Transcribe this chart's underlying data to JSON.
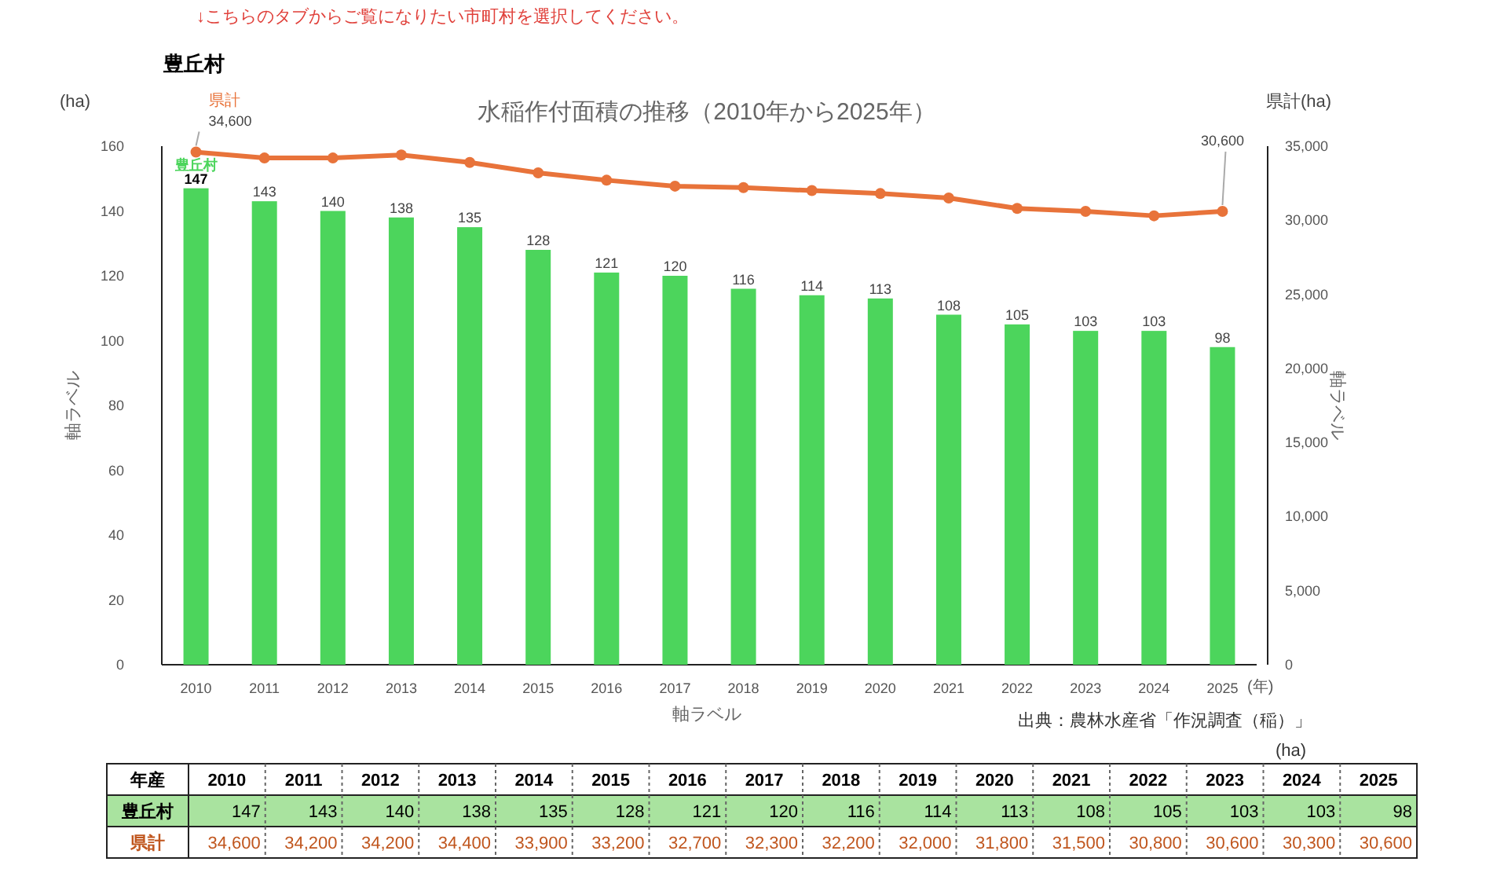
{
  "chart_data": {
    "type": "bar",
    "title": "水稲作付面積の推移（2010年から2025年）",
    "subtitle": "豊丘村",
    "xlabel": "軸ラベル",
    "ylabel": "軸ラベル",
    "y2label": "軸ラベル",
    "categories": [
      "2010",
      "2011",
      "2012",
      "2013",
      "2014",
      "2015",
      "2016",
      "2017",
      "2018",
      "2019",
      "2020",
      "2021",
      "2022",
      "2023",
      "2024",
      "2025"
    ],
    "series": [
      {
        "name": "豊丘村",
        "color": "#4cd55c",
        "values": [
          147,
          143,
          140,
          138,
          135,
          128,
          121,
          120,
          116,
          114,
          113,
          108,
          105,
          103,
          103,
          98
        ],
        "value_labels": [
          "147",
          "143",
          "140",
          "138",
          "135",
          "128",
          "121",
          "120",
          "116",
          "114",
          "113",
          "108",
          "105",
          "103",
          "103",
          "98"
        ]
      },
      {
        "name": "県計",
        "type": "line",
        "axis": "y2",
        "color": "#e8733a",
        "marker": "circle",
        "line_style": "solid",
        "values": [
          34600,
          34200,
          34200,
          34400,
          33900,
          33200,
          32700,
          32300,
          32200,
          32000,
          31800,
          31500,
          30800,
          30600,
          30300,
          30600
        ],
        "value_labels": [
          "34,600",
          null,
          null,
          null,
          null,
          null,
          null,
          null,
          null,
          null,
          null,
          null,
          null,
          null,
          null,
          "30,600"
        ]
      }
    ],
    "ylim": [
      0,
      160
    ],
    "yticks": [
      0,
      20,
      40,
      60,
      80,
      100,
      120,
      140,
      160
    ],
    "y2lim": [
      0,
      35000
    ],
    "y2ticks": [
      0,
      {
        "value": 5000,
        "label": "5,000"
      },
      {
        "value": 10000,
        "label": "10,000"
      },
      {
        "value": 15000,
        "label": "15,000"
      },
      {
        "value": 20000,
        "label": "20,000"
      },
      {
        "value": 25000,
        "label": "25,000"
      },
      {
        "value": 30000,
        "label": "30,000"
      },
      {
        "value": 35000,
        "label": "35,000"
      }
    ],
    "legend": false,
    "grid": false,
    "annotations": [
      "↓こちらのタブからご覧になりたい市町村を選択してください。",
      "(ha)",
      "県計(ha)",
      "(年)",
      "出典：農林水産省「作況調査（稲）」",
      "(ha)",
      "年産",
      "147",
      "143",
      "140",
      "138",
      "135",
      "128",
      "121",
      "120",
      "116",
      "114",
      "113",
      "108",
      "105",
      "103",
      "103",
      "98",
      "34,600",
      "34,200",
      "34,200",
      "34,400",
      "33,900",
      "33,200",
      "32,700",
      "32,300",
      "32,200",
      "32,000",
      "31,800",
      "31,500",
      "30,800",
      "30,600",
      "30,300",
      "30,600"
    ]
  }
}
